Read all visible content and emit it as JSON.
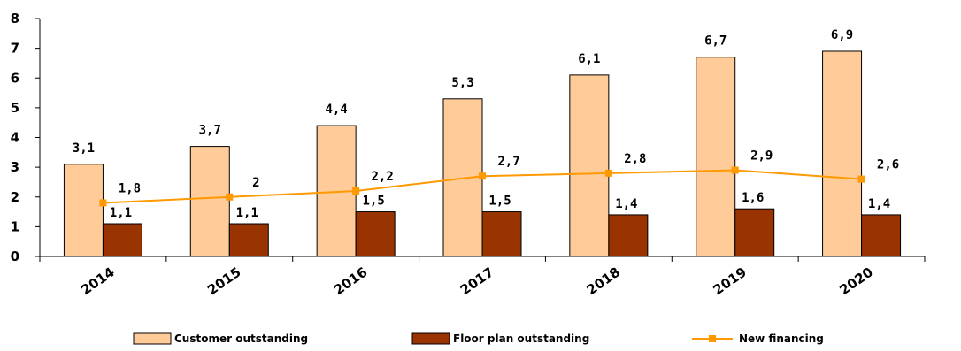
{
  "chart_data": {
    "type": "bar",
    "categories": [
      "2014",
      "2015",
      "2016",
      "2017",
      "2018",
      "2019",
      "2020"
    ],
    "series": [
      {
        "name": "Customer outstanding",
        "kind": "bar",
        "color": "#FFCC99",
        "values": [
          3.1,
          3.7,
          4.4,
          5.3,
          6.1,
          6.7,
          6.9
        ],
        "labels": [
          "3,1",
          "3,7",
          "4,4",
          "5,3",
          "6,1",
          "6,7",
          "6,9"
        ]
      },
      {
        "name": "Floor plan outstanding",
        "kind": "bar",
        "color": "#993300",
        "values": [
          1.1,
          1.1,
          1.5,
          1.5,
          1.4,
          1.6,
          1.4
        ],
        "labels": [
          "1,1",
          "1,1",
          "1,5",
          "1,5",
          "1,4",
          "1,6",
          "1,4"
        ]
      },
      {
        "name": "New financing",
        "kind": "line",
        "color": "#FF9900",
        "values": [
          1.8,
          2.0,
          2.2,
          2.7,
          2.8,
          2.9,
          2.6
        ],
        "labels": [
          "1,8",
          "2",
          "2,2",
          "2,7",
          "2,8",
          "2,9",
          "2,6"
        ]
      }
    ],
    "ylim": [
      0,
      8
    ],
    "yticks": [
      "0",
      "1",
      "2",
      "3",
      "4",
      "5",
      "6",
      "7",
      "8"
    ],
    "grid": false,
    "legend_position": "bottom"
  }
}
